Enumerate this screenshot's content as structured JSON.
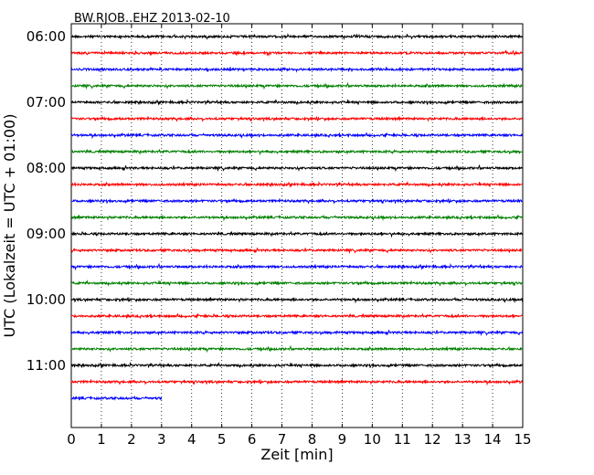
{
  "chart_data": {
    "type": "line",
    "title": "BW.RJOB..EHZ 2013-02-10",
    "xlabel": "Zeit  [min]",
    "ylabel": "UTC (Lokalzeit = UTC + 01:00)",
    "xlim": [
      0,
      15
    ],
    "x_ticks": [
      "0",
      "1",
      "2",
      "3",
      "4",
      "5",
      "6",
      "7",
      "8",
      "9",
      "10",
      "11",
      "12",
      "13",
      "14",
      "15"
    ],
    "y_tick_labels": [
      "06:00",
      "07:00",
      "08:00",
      "09:00",
      "10:00",
      "11:00"
    ],
    "grid": "vertical dotted",
    "line_colors": [
      "#000000",
      "#ff0000",
      "#0000ff",
      "#008000"
    ],
    "trace_start_times": [
      "06:00",
      "06:15",
      "06:30",
      "06:45",
      "07:00",
      "07:15",
      "07:30",
      "07:45",
      "08:00",
      "08:15",
      "08:30",
      "08:45",
      "09:00",
      "09:15",
      "09:30",
      "09:45",
      "10:00",
      "10:15",
      "10:30",
      "10:45",
      "11:00",
      "11:15",
      "11:30"
    ],
    "trace_end_minutes": [
      15,
      15,
      15,
      15,
      15,
      15,
      15,
      15,
      15,
      15,
      15,
      15,
      15,
      15,
      15,
      15,
      15,
      15,
      15,
      15,
      15,
      15,
      3
    ],
    "series": [
      {
        "values": [
          0,
          15
        ],
        "label_time": "06:00"
      }
    ]
  }
}
